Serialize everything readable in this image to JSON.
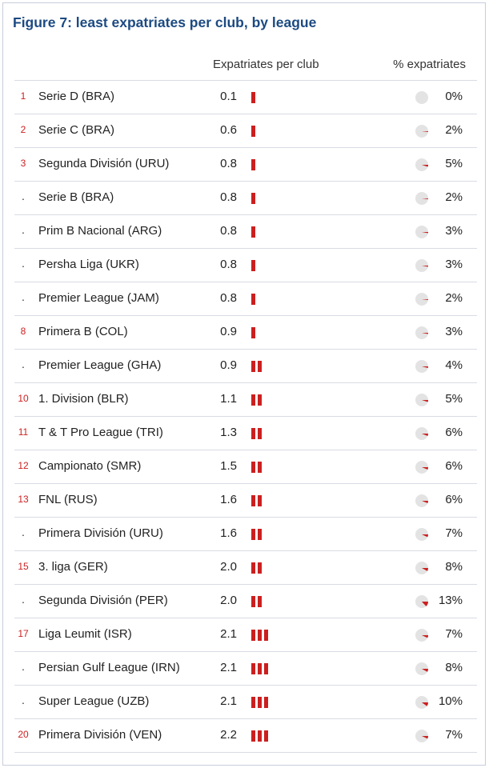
{
  "title": "Figure 7: least expatriates per club, by league",
  "columns": {
    "expatriates": "Expatriates per club",
    "percent": "% expatriates"
  },
  "colors": {
    "title": "#1c4a82",
    "bar": "#cc1f1f",
    "rank": "#cc2222",
    "pie_bg": "#e3e3e3",
    "pie_fill": "#cc1f1f"
  },
  "chart_data": {
    "type": "table",
    "title": "Figure 7: least expatriates per club, by league",
    "columns": [
      "",
      "",
      "Expatriates per club",
      "% expatriates"
    ],
    "rows": [
      {
        "rank": "1",
        "league": "Serie D (BRA)",
        "expatriates": "0.1",
        "bars": 1,
        "percent_label": "0%",
        "percent": 0
      },
      {
        "rank": "2",
        "league": "Serie C (BRA)",
        "expatriates": "0.6",
        "bars": 1,
        "percent_label": "2%",
        "percent": 2
      },
      {
        "rank": "3",
        "league": "Segunda División (URU)",
        "expatriates": "0.8",
        "bars": 1,
        "percent_label": "5%",
        "percent": 5
      },
      {
        "rank": ".",
        "league": "Serie B (BRA)",
        "expatriates": "0.8",
        "bars": 1,
        "percent_label": "2%",
        "percent": 2
      },
      {
        "rank": ".",
        "league": "Prim B Nacional (ARG)",
        "expatriates": "0.8",
        "bars": 1,
        "percent_label": "3%",
        "percent": 3
      },
      {
        "rank": ".",
        "league": "Persha Liga (UKR)",
        "expatriates": "0.8",
        "bars": 1,
        "percent_label": "3%",
        "percent": 3
      },
      {
        "rank": ".",
        "league": "Premier League (JAM)",
        "expatriates": "0.8",
        "bars": 1,
        "percent_label": "2%",
        "percent": 2
      },
      {
        "rank": "8",
        "league": "Primera B (COL)",
        "expatriates": "0.9",
        "bars": 1,
        "percent_label": "3%",
        "percent": 3
      },
      {
        "rank": ".",
        "league": "Premier League (GHA)",
        "expatriates": "0.9",
        "bars": 2,
        "percent_label": "4%",
        "percent": 4
      },
      {
        "rank": "10",
        "league": "1. Division (BLR)",
        "expatriates": "1.1",
        "bars": 2,
        "percent_label": "5%",
        "percent": 5
      },
      {
        "rank": "11",
        "league": "T & T Pro League (TRI)",
        "expatriates": "1.3",
        "bars": 2,
        "percent_label": "6%",
        "percent": 6
      },
      {
        "rank": "12",
        "league": "Campionato (SMR)",
        "expatriates": "1.5",
        "bars": 2,
        "percent_label": "6%",
        "percent": 6
      },
      {
        "rank": "13",
        "league": "FNL (RUS)",
        "expatriates": "1.6",
        "bars": 2,
        "percent_label": "6%",
        "percent": 6
      },
      {
        "rank": ".",
        "league": "Primera División (URU)",
        "expatriates": "1.6",
        "bars": 2,
        "percent_label": "7%",
        "percent": 7
      },
      {
        "rank": "15",
        "league": "3. liga (GER)",
        "expatriates": "2.0",
        "bars": 2,
        "percent_label": "8%",
        "percent": 8
      },
      {
        "rank": ".",
        "league": "Segunda División (PER)",
        "expatriates": "2.0",
        "bars": 2,
        "percent_label": "13%",
        "percent": 13
      },
      {
        "rank": "17",
        "league": "Liga Leumit (ISR)",
        "expatriates": "2.1",
        "bars": 3,
        "percent_label": "7%",
        "percent": 7
      },
      {
        "rank": ".",
        "league": "Persian Gulf League (IRN)",
        "expatriates": "2.1",
        "bars": 3,
        "percent_label": "8%",
        "percent": 8
      },
      {
        "rank": ".",
        "league": "Super League (UZB)",
        "expatriates": "2.1",
        "bars": 3,
        "percent_label": "10%",
        "percent": 10
      },
      {
        "rank": "20",
        "league": "Primera División (VEN)",
        "expatriates": "2.2",
        "bars": 3,
        "percent_label": "7%",
        "percent": 7
      }
    ]
  }
}
